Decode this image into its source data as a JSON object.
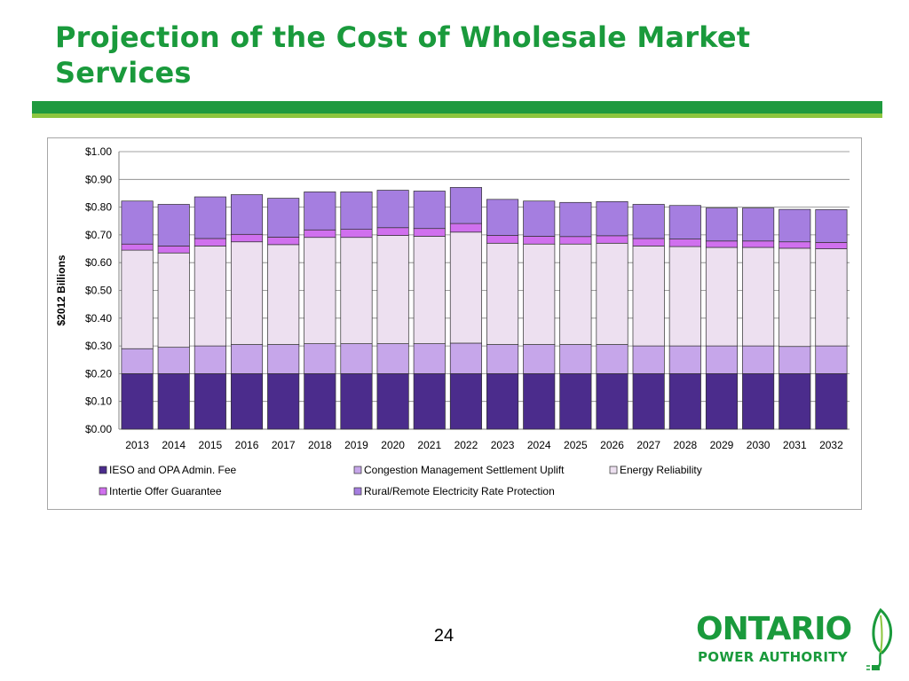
{
  "slide": {
    "title": "Projection of the Cost of Wholesale Market Services",
    "page_number": "24"
  },
  "logo": {
    "line1": "ONTARIO",
    "line2": "POWER AUTHORITY",
    "icon": "leaf-plug-icon"
  },
  "colors": {
    "title_green": "#1a9a3c",
    "bar_dark_green": "#1f9a3f",
    "bar_light_green": "#8dc63f"
  },
  "chart_data": {
    "type": "bar",
    "stacked": true,
    "title": "",
    "xlabel": "",
    "ylabel": "$2012 Billions",
    "ylim": [
      0,
      1.0
    ],
    "yticks": [
      "$0.00",
      "$0.10",
      "$0.20",
      "$0.30",
      "$0.40",
      "$0.50",
      "$0.60",
      "$0.70",
      "$0.80",
      "$0.90",
      "$1.00"
    ],
    "grid": true,
    "legend_position": "bottom",
    "categories": [
      "2013",
      "2014",
      "2015",
      "2016",
      "2017",
      "2018",
      "2019",
      "2020",
      "2021",
      "2022",
      "2023",
      "2024",
      "2025",
      "2026",
      "2027",
      "2028",
      "2029",
      "2030",
      "2031",
      "2032"
    ],
    "series": [
      {
        "name": "IESO and OPA Admin. Fee",
        "color": "#4b2c8c",
        "values": [
          0.2,
          0.2,
          0.2,
          0.2,
          0.2,
          0.2,
          0.2,
          0.2,
          0.2,
          0.2,
          0.2,
          0.2,
          0.2,
          0.2,
          0.2,
          0.2,
          0.2,
          0.2,
          0.2,
          0.2
        ]
      },
      {
        "name": "Congestion Management Settlement Uplift",
        "color": "#c6a6ea",
        "values": [
          0.09,
          0.095,
          0.1,
          0.105,
          0.105,
          0.108,
          0.108,
          0.108,
          0.108,
          0.11,
          0.105,
          0.105,
          0.105,
          0.105,
          0.1,
          0.1,
          0.1,
          0.1,
          0.098,
          0.1
        ]
      },
      {
        "name": "Energy Reliability",
        "color": "#ede0f0",
        "values": [
          0.355,
          0.34,
          0.36,
          0.37,
          0.36,
          0.383,
          0.383,
          0.39,
          0.387,
          0.4,
          0.365,
          0.362,
          0.362,
          0.365,
          0.36,
          0.358,
          0.355,
          0.355,
          0.354,
          0.35
        ]
      },
      {
        "name": "Intertie Offer Guarantee",
        "color": "#d070ee",
        "values": [
          0.022,
          0.025,
          0.027,
          0.027,
          0.027,
          0.027,
          0.029,
          0.028,
          0.028,
          0.031,
          0.028,
          0.028,
          0.027,
          0.027,
          0.027,
          0.027,
          0.023,
          0.023,
          0.023,
          0.023
        ]
      },
      {
        "name": "Rural/Remote Electricity Rate Protection",
        "color": "#a57ee0",
        "values": [
          0.155,
          0.15,
          0.15,
          0.143,
          0.14,
          0.137,
          0.135,
          0.135,
          0.135,
          0.13,
          0.13,
          0.127,
          0.123,
          0.123,
          0.123,
          0.121,
          0.119,
          0.119,
          0.117,
          0.118
        ]
      }
    ]
  }
}
